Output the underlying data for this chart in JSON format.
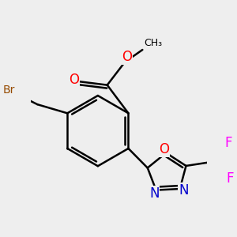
{
  "bg_color": "#eeeeee",
  "bond_color": "#000000",
  "bond_width": 1.8,
  "atom_colors": {
    "O": "#ff0000",
    "N": "#0000cc",
    "Br": "#964B00",
    "F": "#ff00ff",
    "C": "#000000"
  },
  "font_size": 10,
  "dbo": 0.018,
  "figsize": [
    3.0,
    3.0
  ],
  "dpi": 100
}
